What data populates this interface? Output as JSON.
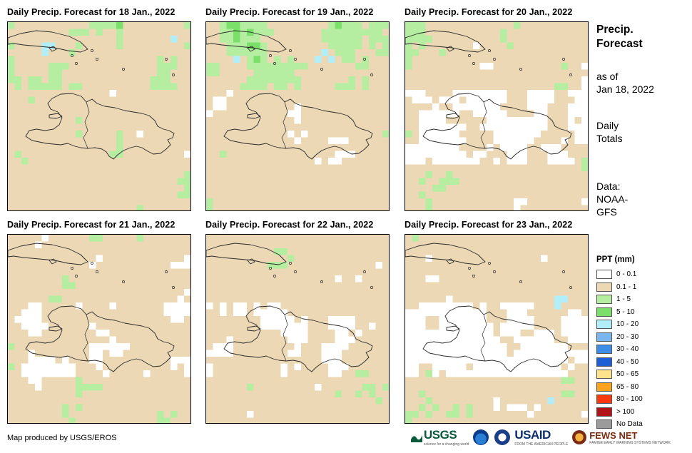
{
  "panels": [
    {
      "title": "Daily Precip. Forecast for 18 Jan., 2022",
      "day": "18 Jan."
    },
    {
      "title": "Daily Precip. Forecast for 19 Jan., 2022",
      "day": "19 Jan."
    },
    {
      "title": "Daily Precip. Forecast for 20 Jan., 2022",
      "day": "20 Jan."
    },
    {
      "title": "Daily Precip. Forecast for 21 Jan., 2022",
      "day": "21 Jan."
    },
    {
      "title": "Daily Precip. Forecast for 22 Jan., 2022",
      "day": "22 Jan."
    },
    {
      "title": "Daily Precip. Forecast for 23 Jan., 2022",
      "day": "23 Jan."
    }
  ],
  "side_info": {
    "title_line1": "Precip.",
    "title_line2": "Forecast",
    "asof_line1": "as of",
    "asof_line2": "Jan 18, 2022",
    "totals_line1": "Daily",
    "totals_line2": "Totals",
    "data_line1": "Data:",
    "data_line2": "NOAA-",
    "data_line3": "GFS"
  },
  "legend": {
    "title": "PPT (mm)",
    "items": [
      {
        "label": "0 - 0.1",
        "color": "#ffffff"
      },
      {
        "label": "0.1 - 1",
        "color": "#ecd8b4"
      },
      {
        "label": "1 - 5",
        "color": "#b5eea1"
      },
      {
        "label": "5 - 10",
        "color": "#7ae06a"
      },
      {
        "label": "10 - 20",
        "color": "#b2eefa"
      },
      {
        "label": "20 - 30",
        "color": "#7ab6ef"
      },
      {
        "label": "30 - 40",
        "color": "#3c8de8"
      },
      {
        "label": "40 - 50",
        "color": "#1f5fd6"
      },
      {
        "label": "50 - 65",
        "color": "#fde38b"
      },
      {
        "label": "65 - 80",
        "color": "#fba31c"
      },
      {
        "label": "80 - 100",
        "color": "#f93a0e"
      },
      {
        "label": "> 100",
        "color": "#b01414"
      },
      {
        "label": "No Data",
        "color": "#9b9b9b"
      }
    ]
  },
  "footer": {
    "credit": "Map produced by USGS/EROS"
  },
  "logos": {
    "usgs": "USGS",
    "usgs_tagline": "science for a changing world",
    "usaid": "USAID",
    "usaid_tagline": "FROM THE AMERICAN PEOPLE",
    "fews": "FEWS NET",
    "fews_tagline": "FAMINE EARLY WARNING SYSTEMS NETWORK"
  },
  "colors": {
    "white": "#ffffff",
    "tan": "#ecd8b4",
    "light_green": "#b5eea1",
    "green": "#7ae06a",
    "light_blue": "#b2eefa"
  }
}
